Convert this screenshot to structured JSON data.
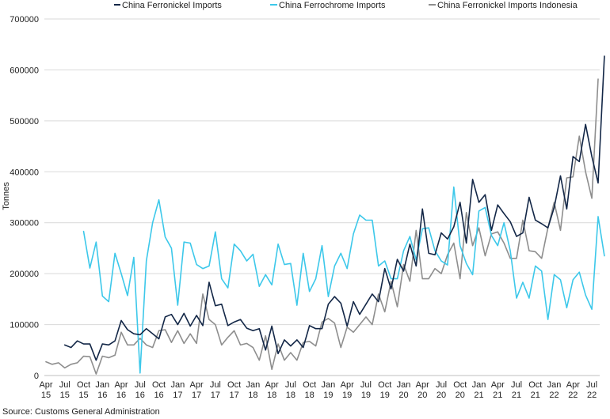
{
  "chart_data": {
    "type": "line",
    "title": "",
    "xlabel": "",
    "ylabel": "Tonnes",
    "ylim": [
      0,
      700000
    ],
    "yticks": [
      0,
      100000,
      200000,
      300000,
      400000,
      500000,
      600000,
      700000
    ],
    "ytick_labels": [
      "0",
      "100000",
      "200000",
      "300000",
      "400000",
      "500000",
      "600000",
      "700000"
    ],
    "grid": "horizontal",
    "legend_position": "top",
    "source": "Source: Customs General Administration",
    "x_start": "Apr 2015",
    "x_end": "Aug 2022",
    "xticks": [
      {
        "index": 0,
        "month": "Apr",
        "year": "15"
      },
      {
        "index": 3,
        "month": "Jul",
        "year": "15"
      },
      {
        "index": 6,
        "month": "Oct",
        "year": "15"
      },
      {
        "index": 9,
        "month": "Jan",
        "year": "16"
      },
      {
        "index": 12,
        "month": "Apr",
        "year": "16"
      },
      {
        "index": 15,
        "month": "Jul",
        "year": "16"
      },
      {
        "index": 18,
        "month": "Oct",
        "year": "16"
      },
      {
        "index": 21,
        "month": "Jan",
        "year": "17"
      },
      {
        "index": 24,
        "month": "Apr",
        "year": "17"
      },
      {
        "index": 27,
        "month": "Jul",
        "year": "17"
      },
      {
        "index": 30,
        "month": "Oct",
        "year": "17"
      },
      {
        "index": 33,
        "month": "Jan",
        "year": "18"
      },
      {
        "index": 36,
        "month": "Apr",
        "year": "18"
      },
      {
        "index": 39,
        "month": "Jul",
        "year": "18"
      },
      {
        "index": 42,
        "month": "Oct",
        "year": "18"
      },
      {
        "index": 45,
        "month": "Jan",
        "year": "19"
      },
      {
        "index": 48,
        "month": "Apr",
        "year": "19"
      },
      {
        "index": 51,
        "month": "Jul",
        "year": "19"
      },
      {
        "index": 54,
        "month": "Oct",
        "year": "19"
      },
      {
        "index": 57,
        "month": "Jan",
        "year": "20"
      },
      {
        "index": 60,
        "month": "Apr",
        "year": "20"
      },
      {
        "index": 63,
        "month": "Jul",
        "year": "20"
      },
      {
        "index": 66,
        "month": "Oct",
        "year": "20"
      },
      {
        "index": 69,
        "month": "Jan",
        "year": "21"
      },
      {
        "index": 72,
        "month": "Apr",
        "year": "21"
      },
      {
        "index": 75,
        "month": "Jul",
        "year": "21"
      },
      {
        "index": 78,
        "month": "Oct",
        "year": "21"
      },
      {
        "index": 81,
        "month": "Jan",
        "year": "22"
      },
      {
        "index": 84,
        "month": "Apr",
        "year": "22"
      },
      {
        "index": 87,
        "month": "Jul",
        "year": "22"
      }
    ],
    "series": [
      {
        "name": "China Ferronickel Imports",
        "color": "#132747",
        "start_index": 3,
        "values": [
          60000,
          55000,
          68000,
          62000,
          62000,
          30000,
          62000,
          60000,
          68000,
          108000,
          90000,
          82000,
          80000,
          92000,
          82000,
          72000,
          115000,
          120000,
          100000,
          122000,
          97000,
          118000,
          98000,
          183000,
          137000,
          140000,
          98000,
          105000,
          110000,
          93000,
          88000,
          92000,
          50000,
          97000,
          43000,
          70000,
          58000,
          70000,
          55000,
          98000,
          92000,
          92000,
          140000,
          155000,
          142000,
          97000,
          145000,
          120000,
          140000,
          160000,
          145000,
          210000,
          170000,
          228000,
          205000,
          258000,
          215000,
          327000,
          240000,
          237000,
          280000,
          268000,
          292000,
          340000,
          260000,
          385000,
          340000,
          355000,
          285000,
          335000,
          318000,
          302000,
          273000,
          280000,
          350000,
          305000,
          298000,
          290000,
          330000,
          392000,
          327000,
          430000,
          420000,
          493000,
          430000,
          378000,
          627000
        ]
      },
      {
        "name": "China Ferrochrome Imports",
        "color": "#3dc8ea",
        "start_index": 6,
        "values": [
          283000,
          211000,
          262000,
          156000,
          145000,
          240000,
          200000,
          157000,
          232000,
          5000,
          225000,
          300000,
          345000,
          272000,
          250000,
          138000,
          262000,
          260000,
          218000,
          210000,
          215000,
          282000,
          190000,
          172000,
          258000,
          245000,
          225000,
          238000,
          175000,
          198000,
          178000,
          258000,
          218000,
          220000,
          138000,
          240000,
          165000,
          190000,
          255000,
          155000,
          215000,
          240000,
          210000,
          278000,
          315000,
          305000,
          305000,
          215000,
          225000,
          190000,
          190000,
          245000,
          273000,
          227000,
          288000,
          290000,
          245000,
          225000,
          217000,
          370000,
          255000,
          220000,
          198000,
          323000,
          330000,
          275000,
          255000,
          300000,
          245000,
          152000,
          183000,
          152000,
          215000,
          205000,
          110000,
          198000,
          188000,
          133000,
          188000,
          203000,
          158000,
          130000,
          312000,
          235000
        ]
      },
      {
        "name": "China Ferronickel Imports Indonesia",
        "color": "#8e8e8e",
        "start_index": 0,
        "values": [
          27000,
          22000,
          25000,
          15000,
          22000,
          25000,
          38000,
          37000,
          3000,
          38000,
          35000,
          40000,
          85000,
          60000,
          60000,
          73000,
          60000,
          55000,
          88000,
          90000,
          65000,
          88000,
          63000,
          82000,
          63000,
          160000,
          110000,
          100000,
          60000,
          75000,
          88000,
          60000,
          63000,
          55000,
          30000,
          78000,
          12000,
          62000,
          30000,
          45000,
          30000,
          65000,
          67000,
          58000,
          105000,
          112000,
          103000,
          55000,
          95000,
          85000,
          100000,
          115000,
          100000,
          160000,
          125000,
          185000,
          135000,
          218000,
          185000,
          285000,
          190000,
          190000,
          210000,
          200000,
          237000,
          260000,
          190000,
          320000,
          255000,
          290000,
          235000,
          278000,
          282000,
          260000,
          230000,
          230000,
          305000,
          245000,
          243000,
          230000,
          290000,
          340000,
          285000,
          388000,
          390000,
          470000,
          400000,
          348000,
          582000
        ]
      }
    ]
  }
}
